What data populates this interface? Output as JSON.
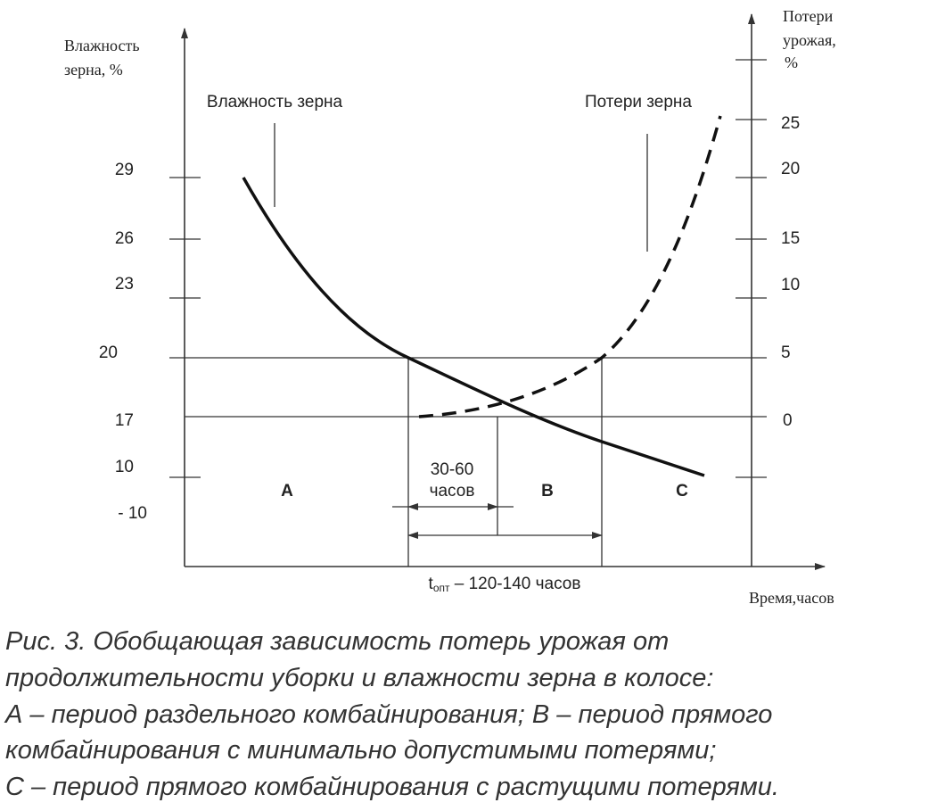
{
  "left_axis": {
    "title": [
      "Влажность",
      "зерна, %"
    ],
    "ticks": [
      "29",
      "26",
      "23",
      "20",
      "17",
      "10",
      "- 10"
    ]
  },
  "right_axis": {
    "title": [
      "Потери",
      "урожая,",
      "%"
    ],
    "ticks": [
      "25",
      "20",
      "15",
      "10",
      "5",
      "0"
    ]
  },
  "x_axis": {
    "title": "Время,часов"
  },
  "curve_labels": {
    "moisture": "Влажность зерна",
    "losses": "Потери зерна"
  },
  "regions": [
    "A",
    "B",
    "C"
  ],
  "intervals": {
    "short": [
      "30-60",
      "часов"
    ],
    "optimal": {
      "symbol": "t",
      "subscript": "опт",
      "text": " – 120-140 часов"
    }
  },
  "caption": [
    "Рис. 3. Обобщающая зависимость потерь урожая от",
    "продолжительности уборки и влажности зерна в колосе:",
    "А – период раздельного комбайнирования; В – период прямого",
    "комбайнирования с минимально допустимыми потерями;",
    "С – период прямого комбайнирования с растущими потерями."
  ]
}
